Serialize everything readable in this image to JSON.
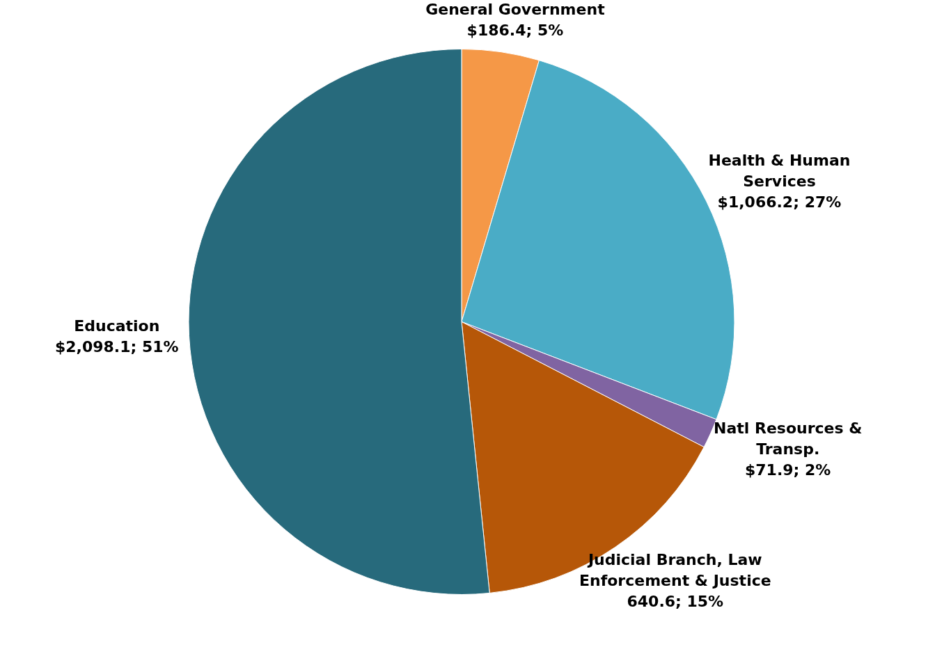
{
  "chart_data": {
    "type": "pie",
    "categories": [
      "General Government",
      "Health & Human Services",
      "Natl Resources & Transp.",
      "Judicial Branch, Law Enforcement & Justice",
      "Education"
    ],
    "values": [
      186.4,
      1066.2,
      71.9,
      640.6,
      2098.1
    ],
    "colors": [
      "#f59847",
      "#4aacc6",
      "#8064a2",
      "#b65708",
      "#276a7c"
    ],
    "value_labels": [
      "$186.4; 5%",
      "$1,066.2; 27%",
      "$71.9; 2%",
      "640.6; 15%",
      "$2,098.1; 51%"
    ]
  }
}
